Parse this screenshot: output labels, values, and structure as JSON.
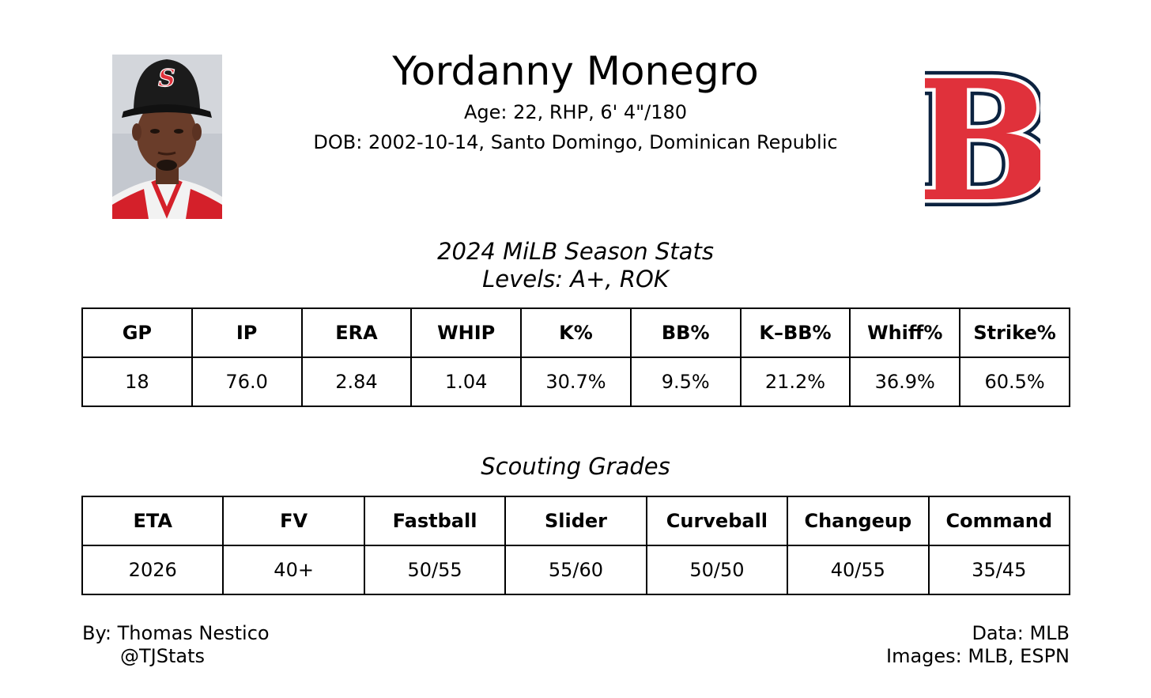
{
  "player": {
    "name": "Yordanny Monegro",
    "meta": "Age: 22, RHP, 6' 4\"/180",
    "dob": "DOB: 2002-10-14, Santo Domingo, Dominican Republic",
    "cap_letter": "S",
    "team_logo_icon": "red-sox-b-logo-icon",
    "colors": {
      "team_red": "#e0313b",
      "team_navy": "#0c2340",
      "cap_black": "#1b1b1b",
      "photo_bg": "#bfc3ca"
    }
  },
  "stats": {
    "title": "2024 MiLB Season Stats",
    "levels": "Levels: A+, ROK",
    "headers": [
      "GP",
      "IP",
      "ERA",
      "WHIP",
      "K%",
      "BB%",
      "K–BB%",
      "Whiff%",
      "Strike%"
    ],
    "values": [
      "18",
      "76.0",
      "2.84",
      "1.04",
      "30.7%",
      "9.5%",
      "21.2%",
      "36.9%",
      "60.5%"
    ]
  },
  "grades": {
    "title": "Scouting Grades",
    "headers": [
      "ETA",
      "FV",
      "Fastball",
      "Slider",
      "Curveball",
      "Changeup",
      "Command"
    ],
    "values": [
      "2026",
      "40+",
      "50/55",
      "55/60",
      "50/50",
      "40/55",
      "35/45"
    ]
  },
  "footer": {
    "author": "By: Thomas Nestico",
    "handle": "@TJStats",
    "data_source": "Data: MLB",
    "image_source": "Images: MLB, ESPN"
  }
}
